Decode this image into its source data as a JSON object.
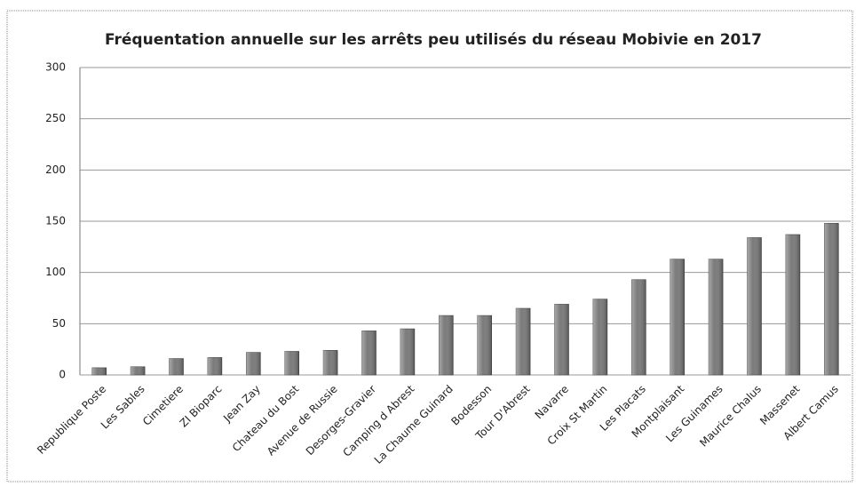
{
  "chart_data": {
    "type": "bar",
    "title": "Fréquentation annuelle sur les arrêts peu utilisés du réseau Mobivie en 2017",
    "categories": [
      "Republique Poste",
      "Les Sables",
      "Cimetiere",
      "ZI Bioparc",
      "Jean Zay",
      "Chateau du Bost",
      "Avenue de Russie",
      "Desorges-Gravier",
      "Camping d Abrest",
      "La Chaume Guinard",
      "Bodesson",
      "Tour D'Abrest",
      "Navarre",
      "Croix St Martin",
      "Les Placats",
      "Montplaisant",
      "Les Guinames",
      "Maurice Chalus",
      "Massenet",
      "Albert Camus"
    ],
    "values": [
      7,
      8,
      16,
      17,
      22,
      23,
      24,
      43,
      45,
      58,
      58,
      65,
      69,
      74,
      93,
      113,
      113,
      134,
      137,
      148
    ],
    "color": "#7a7a7a",
    "ylim": [
      0,
      300
    ],
    "yticks": [
      0,
      50,
      100,
      150,
      200,
      250,
      300
    ],
    "grid": true
  }
}
